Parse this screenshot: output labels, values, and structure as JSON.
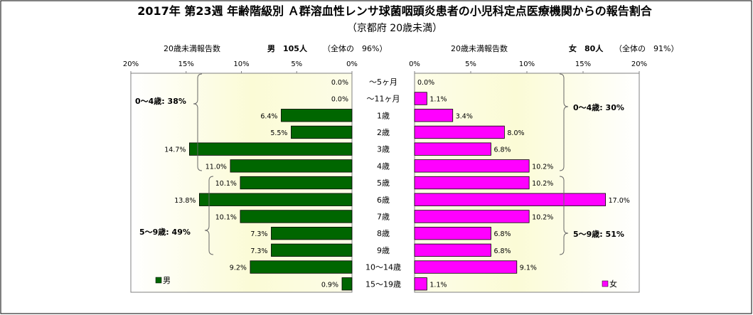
{
  "chart_data": {
    "type": "bar",
    "title": "2017年 第23週 年齢階級別 Ａ群溶血性レンサ球菌咽頭炎患者の小児科定点医療機関からの報告割合",
    "subtitle": "（京都府 20歳未満）",
    "categories": [
      "～5ヶ月",
      "～11ヶ月",
      "1歳",
      "2歳",
      "3歳",
      "4歳",
      "5歳",
      "6歳",
      "7歳",
      "8歳",
      "9歳",
      "10～14歳",
      "15～19歳"
    ],
    "series": [
      {
        "name": "男",
        "color": "#006600",
        "values": [
          0.0,
          0.0,
          6.4,
          5.5,
          14.7,
          11.0,
          10.1,
          13.8,
          10.1,
          7.3,
          7.3,
          9.2,
          0.9
        ],
        "labels": [
          "0.0%",
          "0.0%",
          "6.4%",
          "5.5%",
          "14.7%",
          "11.0%",
          "10.1%",
          "13.8%",
          "10.1%",
          "7.3%",
          "7.3%",
          "9.2%",
          "0.9%"
        ]
      },
      {
        "name": "女",
        "color": "#ff00ff",
        "values": [
          0.0,
          1.1,
          3.4,
          8.0,
          6.8,
          10.2,
          10.2,
          17.0,
          10.2,
          6.8,
          6.8,
          9.1,
          1.1
        ],
        "labels": [
          "0.0%",
          "1.1%",
          "3.4%",
          "8.0%",
          "6.8%",
          "10.2%",
          "10.2%",
          "17.0%",
          "10.2%",
          "6.8%",
          "6.8%",
          "9.1%",
          "1.1%"
        ]
      }
    ],
    "x_ticks_labels": [
      "20%",
      "15%",
      "10%",
      "5%",
      "0%"
    ],
    "right_ticks_labels": [
      "0%",
      "5%",
      "10%",
      "15%",
      "20%"
    ],
    "xlim": [
      0,
      20
    ],
    "left_header": {
      "axis_title": "20歳未満報告数",
      "sex_count": "男　105人",
      "share": "（全体の　96%）"
    },
    "right_header": {
      "axis_title": "20歳未満報告数",
      "sex_count": "女　80人",
      "share": "（全体の　91%）"
    },
    "group_annotations": {
      "male_0_4": "0～4歳: 38%",
      "male_5_9": "5～9歳: 49%",
      "female_0_4": "0～4歳: 30%",
      "female_5_9": "5～9歳: 51%"
    },
    "legend": {
      "male": "男",
      "female": "女"
    }
  }
}
